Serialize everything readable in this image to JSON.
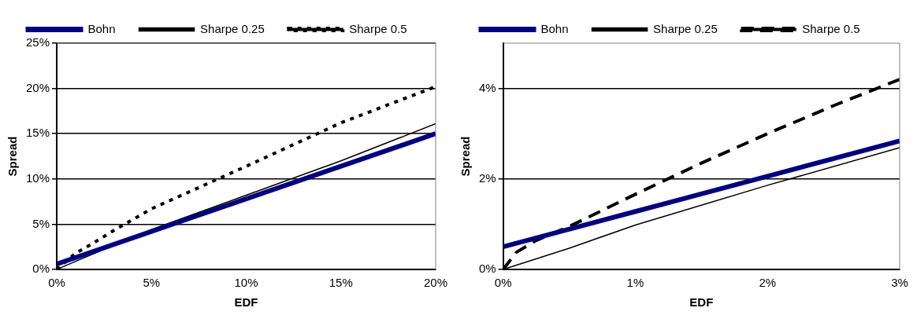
{
  "chart_data": [
    {
      "type": "line",
      "xlabel": "EDF",
      "ylabel": "Spread",
      "legend": "top",
      "grid": "y",
      "xlim": [
        0,
        20
      ],
      "xticks": [
        {
          "value": 0,
          "label": "0%"
        },
        {
          "value": 5,
          "label": "5%"
        },
        {
          "value": 10,
          "label": "10%"
        },
        {
          "value": 15,
          "label": "15%"
        },
        {
          "value": 20,
          "label": "20%"
        }
      ],
      "ylim": [
        0,
        25
      ],
      "yticks": [
        {
          "value": 0,
          "label": "0%"
        },
        {
          "value": 5,
          "label": "5%"
        },
        {
          "value": 10,
          "label": "10%"
        },
        {
          "value": 15,
          "label": "15%"
        },
        {
          "value": 20,
          "label": "20%"
        },
        {
          "value": 25,
          "label": "25%"
        }
      ],
      "series": [
        {
          "name": "Bohn",
          "color": "#000080",
          "line_style": "solid",
          "x": [
            0,
            5,
            10,
            15,
            20
          ],
          "values": [
            0.6,
            4.2,
            7.8,
            11.4,
            15.0
          ]
        },
        {
          "name": "Sharpe 0.25",
          "color": "#000000",
          "line_style": "solid",
          "x": [
            0,
            1,
            5,
            10,
            15,
            20
          ],
          "values": [
            0,
            0.9,
            4.4,
            8.2,
            12.0,
            16.1
          ]
        },
        {
          "name": "Sharpe 0.5",
          "color": "#000000",
          "line_style": "dotted",
          "x": [
            0,
            1,
            2,
            3,
            5,
            10,
            15,
            20
          ],
          "values": [
            0,
            1.8,
            3.0,
            4.3,
            6.7,
            11.4,
            16.2,
            20.2
          ]
        }
      ]
    },
    {
      "type": "line",
      "xlabel": "EDF",
      "ylabel": "Spread",
      "legend": "top",
      "grid": "y",
      "xlim": [
        0,
        3
      ],
      "xticks": [
        {
          "value": 0,
          "label": "0%"
        },
        {
          "value": 1,
          "label": "1%"
        },
        {
          "value": 2,
          "label": "2%"
        },
        {
          "value": 3,
          "label": "3%"
        }
      ],
      "ylim": [
        0,
        5
      ],
      "yticks": [
        {
          "value": 0,
          "label": "0%"
        },
        {
          "value": 2,
          "label": "2%"
        },
        {
          "value": 4,
          "label": "4%"
        }
      ],
      "series": [
        {
          "name": "Bohn",
          "color": "#000080",
          "line_style": "solid",
          "x": [
            0,
            1,
            2,
            3
          ],
          "values": [
            0.5,
            1.28,
            2.06,
            2.84
          ]
        },
        {
          "name": "Sharpe 0.25",
          "color": "#000000",
          "line_style": "solid",
          "x": [
            0,
            0.5,
            1,
            2,
            3
          ],
          "values": [
            0,
            0.47,
            0.98,
            1.86,
            2.69
          ]
        },
        {
          "name": "Sharpe 0.5",
          "color": "#000000",
          "line_style": "dashed",
          "x": [
            0,
            0.1,
            0.25,
            0.5,
            1,
            1.5,
            2,
            2.5,
            3
          ],
          "values": [
            0,
            0.38,
            0.64,
            0.95,
            1.66,
            2.35,
            3.0,
            3.62,
            4.2
          ]
        }
      ]
    }
  ]
}
